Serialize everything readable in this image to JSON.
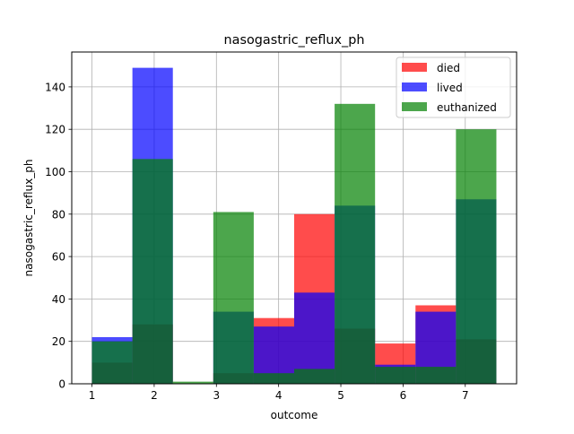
{
  "chart_data": {
    "type": "bar",
    "title": "nasogastric_reflux_ph",
    "xlabel": "outcome",
    "ylabel": "nasogastric_reflux_ph",
    "xlim": [
      0.675,
      7.825
    ],
    "ylim": [
      0,
      156.45
    ],
    "bin_edges": [
      1.0,
      1.65,
      2.3,
      2.95,
      3.6,
      4.25,
      4.9,
      5.55,
      6.2,
      6.85,
      7.5
    ],
    "xticks": [
      1,
      2,
      3,
      4,
      5,
      6,
      7
    ],
    "xtick_labels": [
      "1",
      "2",
      "3",
      "4",
      "5",
      "6",
      "7"
    ],
    "yticks": [
      0,
      20,
      40,
      60,
      80,
      100,
      120,
      140
    ],
    "ytick_labels": [
      "0",
      "20",
      "40",
      "60",
      "80",
      "100",
      "120",
      "140"
    ],
    "grid": true,
    "legend_position": "top-right",
    "series": [
      {
        "name": "died",
        "color": "#ff0000",
        "values": [
          10,
          28,
          0,
          5,
          31,
          80,
          26,
          19,
          37,
          21
        ]
      },
      {
        "name": "lived",
        "color": "#0000ff",
        "values": [
          22,
          149,
          0,
          34,
          27,
          43,
          84,
          9,
          34,
          87
        ]
      },
      {
        "name": "euthanized",
        "color": "#008000",
        "values": [
          20,
          106,
          1,
          81,
          5,
          7,
          132,
          8,
          8,
          120
        ]
      }
    ]
  }
}
